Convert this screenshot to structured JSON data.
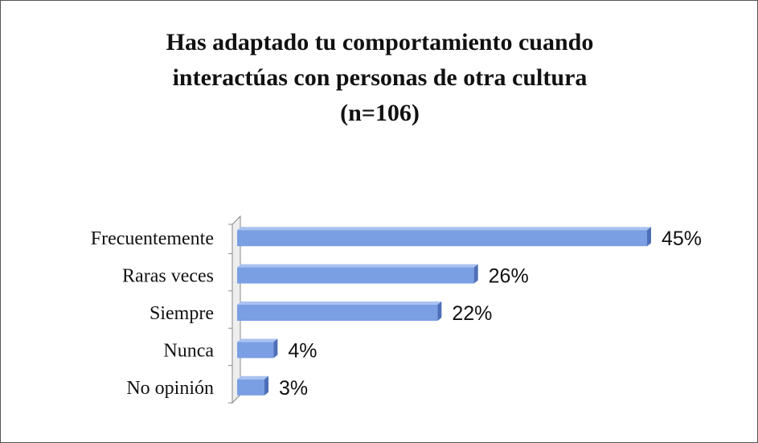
{
  "chart_data": {
    "type": "bar",
    "orientation": "horizontal",
    "title_lines": [
      "Has adaptado tu comportamiento cuando",
      "interactúas con personas de otra cultura",
      "(n=106)"
    ],
    "categories": [
      "Frecuentemente",
      "Raras veces",
      "Siempre",
      "Nunca",
      "No opinión"
    ],
    "values": [
      45,
      26,
      22,
      4,
      3
    ],
    "value_labels": [
      "45%",
      "26%",
      "22%",
      "4%",
      "3%"
    ],
    "unit": "%",
    "xlim": [
      0,
      45
    ],
    "grid": false,
    "legend": "none",
    "colors": {
      "bar": "#7b9fe3",
      "bar_top": "#a9c2f0",
      "bar_end": "#4c6fb8",
      "wall": "#eeeeee",
      "axis": "#888888"
    }
  }
}
